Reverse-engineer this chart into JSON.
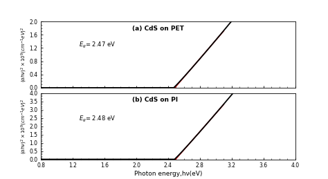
{
  "title_a": "(a) CdS on PET",
  "title_b": "(b) CdS on PI",
  "xlabel": "Photon energy,hν(eV)",
  "Eg_a": 2.47,
  "Eg_b": 2.48,
  "xmin": 0.8,
  "xmax": 4.0,
  "xticks": [
    0.8,
    1.2,
    1.6,
    2.0,
    2.4,
    2.8,
    3.2,
    3.6,
    4.0
  ],
  "ylim_a": [
    0.0,
    2.0
  ],
  "yticks_a": [
    0.0,
    0.4,
    0.8,
    1.2,
    1.6,
    2.0
  ],
  "ylim_b": [
    0.0,
    4.0
  ],
  "yticks_b": [
    0.0,
    0.5,
    1.0,
    1.5,
    2.0,
    2.5,
    3.0,
    3.5,
    4.0
  ],
  "curve_color": "#000000",
  "line_color": "#cc0000",
  "bg_color": "#ffffff",
  "scale_a": 2.8,
  "scale_b": 5.5,
  "power_a": 1.05,
  "power_b": 1.05,
  "red_start_a": 2.47,
  "red_end_a": 3.1,
  "red_start_b": 2.48,
  "red_end_b": 3.1,
  "Eg_text_a": "E_g= 2.47 eV",
  "Eg_text_b": "E_g= 2.48 eV"
}
